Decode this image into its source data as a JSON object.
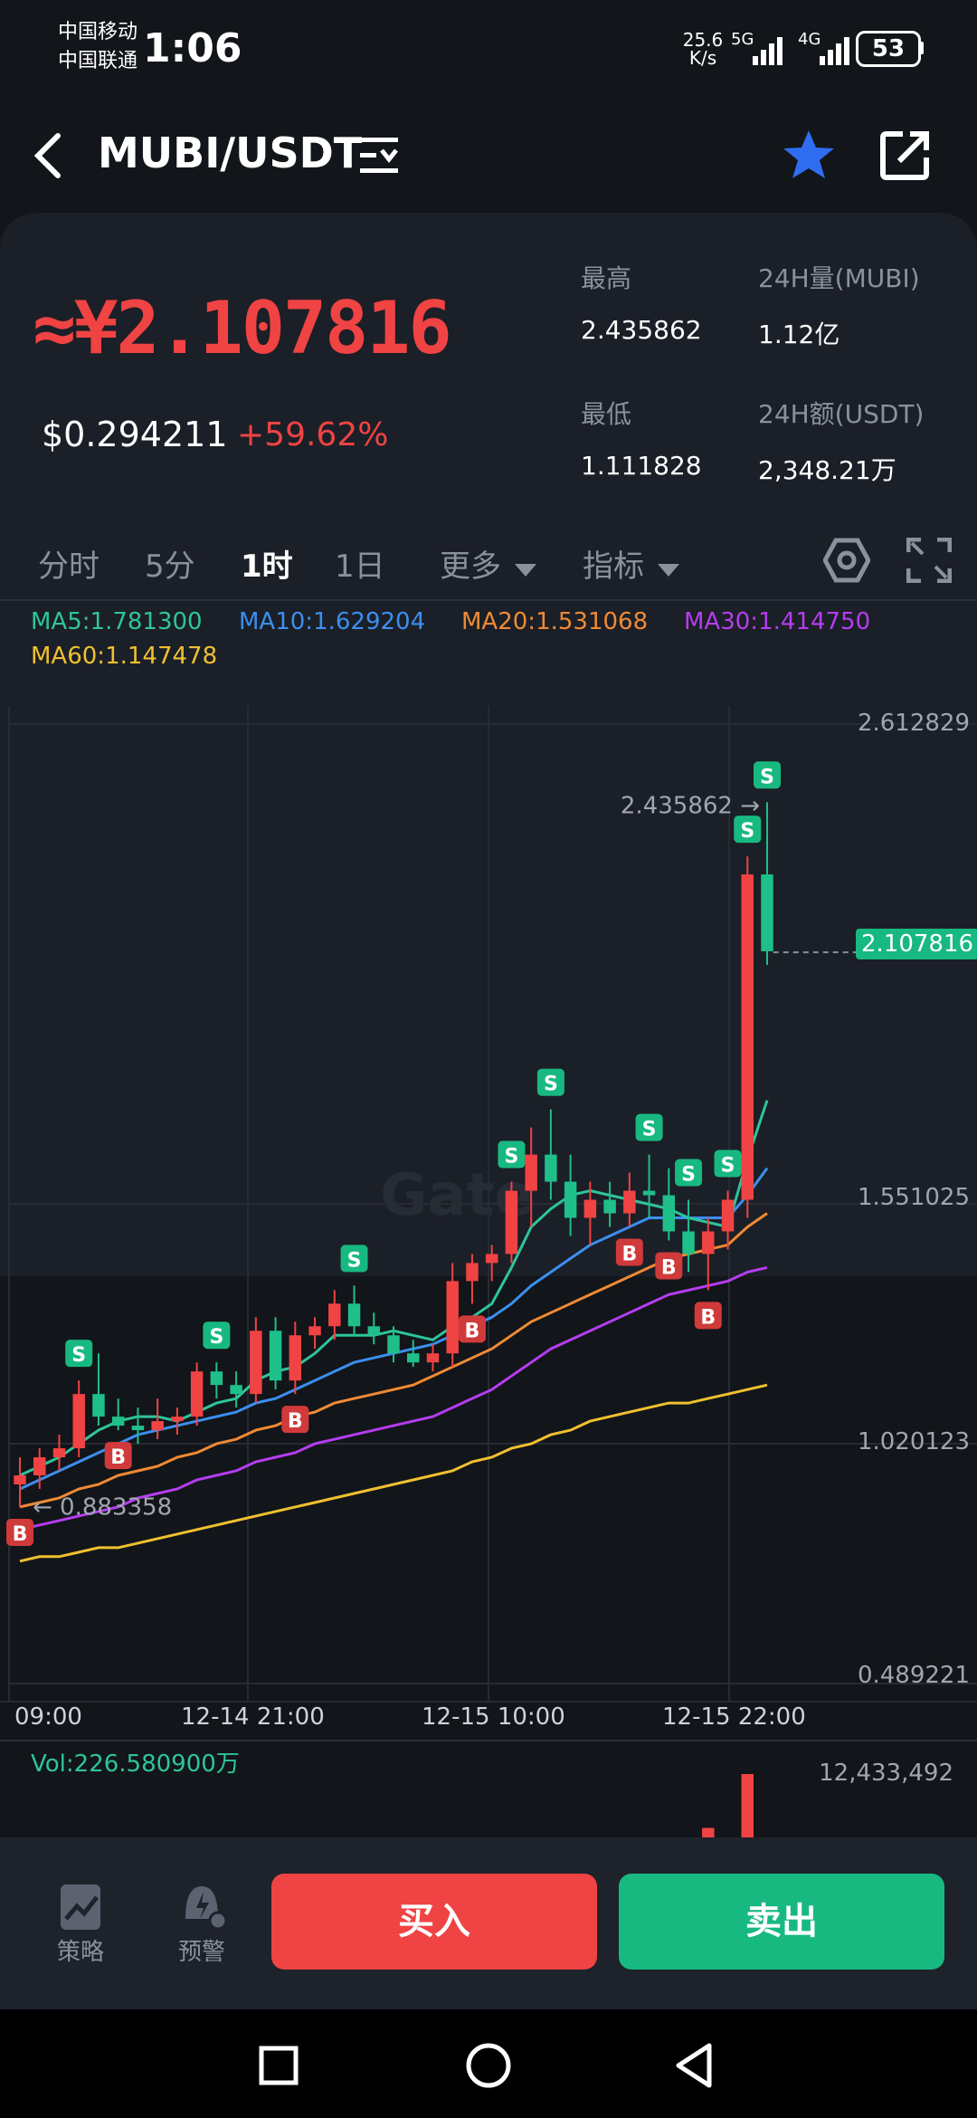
{
  "status_bar": {
    "carrier1": "中国移动",
    "carrier2": "中国联通",
    "time": "1:06",
    "speed": "25.6",
    "speed_unit": "K/s",
    "net1": "5G",
    "net2": "4G",
    "battery": "53"
  },
  "header": {
    "pair": "MUBI/USDT",
    "icons": [
      "back-arrow-icon",
      "list-menu-icon",
      "star-icon",
      "share-icon"
    ]
  },
  "price": {
    "main": "≈¥2.107816",
    "usd": "$0.294211",
    "change": "+59.62%",
    "high_label": "最高",
    "high_value": "2.435862",
    "low_label": "最低",
    "low_value": "1.111828",
    "vol_label": "24H量(MUBI)",
    "vol_value": "1.12亿",
    "amt_label": "24H额(USDT)",
    "amt_value": "2,348.21万"
  },
  "tabs": [
    {
      "label": "分时",
      "active": false
    },
    {
      "label": "5分",
      "active": false
    },
    {
      "label": "1时",
      "active": true
    },
    {
      "label": "1日",
      "active": false
    },
    {
      "label": "更多",
      "active": false
    },
    {
      "label": "指标",
      "active": false
    }
  ],
  "ma_legend": {
    "ma5": "MA5:1.781300",
    "ma10": "MA10:1.629204",
    "ma20": "MA20:1.531068",
    "ma30": "MA30:1.414750",
    "ma60": "MA60:1.147478"
  },
  "colors": {
    "up": "#f04343",
    "down": "#1fbf8a",
    "ma5": "#2ec59a",
    "ma10": "#3b8ff0",
    "ma20": "#f08a35",
    "ma30": "#b53df0",
    "ma60": "#f0c030",
    "buy": "#f04343",
    "sell": "#18b980"
  },
  "chart_data": {
    "type": "candlestick",
    "y_ticks": [
      "2.612829",
      "1.551025",
      "1.020123",
      "0.489221"
    ],
    "ylim": [
      0.489221,
      2.612829
    ],
    "x_ticks": [
      "09:00",
      "12-14 21:00",
      "12-15 10:00",
      "12-15 22:00"
    ],
    "max_label": "2.435862 →",
    "min_label": "← 0.883358",
    "current_price": "2.107816",
    "watermark": "Gate",
    "candles": [
      {
        "o": 0.93,
        "h": 0.99,
        "l": 0.88,
        "c": 0.95
      },
      {
        "o": 0.95,
        "h": 1.01,
        "l": 0.92,
        "c": 0.99
      },
      {
        "o": 0.99,
        "h": 1.04,
        "l": 0.96,
        "c": 1.01
      },
      {
        "o": 1.01,
        "h": 1.16,
        "l": 0.99,
        "c": 1.13
      },
      {
        "o": 1.13,
        "h": 1.22,
        "l": 1.06,
        "c": 1.08
      },
      {
        "o": 1.08,
        "h": 1.12,
        "l": 1.05,
        "c": 1.06
      },
      {
        "o": 1.06,
        "h": 1.1,
        "l": 1.02,
        "c": 1.05
      },
      {
        "o": 1.05,
        "h": 1.12,
        "l": 1.03,
        "c": 1.07
      },
      {
        "o": 1.07,
        "h": 1.1,
        "l": 1.04,
        "c": 1.08
      },
      {
        "o": 1.08,
        "h": 1.2,
        "l": 1.06,
        "c": 1.18
      },
      {
        "o": 1.18,
        "h": 1.2,
        "l": 1.12,
        "c": 1.15
      },
      {
        "o": 1.15,
        "h": 1.18,
        "l": 1.1,
        "c": 1.13
      },
      {
        "o": 1.13,
        "h": 1.3,
        "l": 1.11,
        "c": 1.27
      },
      {
        "o": 1.27,
        "h": 1.3,
        "l": 1.14,
        "c": 1.16
      },
      {
        "o": 1.16,
        "h": 1.29,
        "l": 1.13,
        "c": 1.26
      },
      {
        "o": 1.26,
        "h": 1.3,
        "l": 1.23,
        "c": 1.28
      },
      {
        "o": 1.28,
        "h": 1.36,
        "l": 1.25,
        "c": 1.33
      },
      {
        "o": 1.33,
        "h": 1.37,
        "l": 1.26,
        "c": 1.28
      },
      {
        "o": 1.28,
        "h": 1.31,
        "l": 1.24,
        "c": 1.26
      },
      {
        "o": 1.26,
        "h": 1.28,
        "l": 1.2,
        "c": 1.22
      },
      {
        "o": 1.22,
        "h": 1.25,
        "l": 1.19,
        "c": 1.2
      },
      {
        "o": 1.2,
        "h": 1.24,
        "l": 1.18,
        "c": 1.22
      },
      {
        "o": 1.22,
        "h": 1.42,
        "l": 1.19,
        "c": 1.38
      },
      {
        "o": 1.38,
        "h": 1.44,
        "l": 1.33,
        "c": 1.42
      },
      {
        "o": 1.42,
        "h": 1.46,
        "l": 1.38,
        "c": 1.44
      },
      {
        "o": 1.44,
        "h": 1.6,
        "l": 1.42,
        "c": 1.58
      },
      {
        "o": 1.58,
        "h": 1.72,
        "l": 1.5,
        "c": 1.66
      },
      {
        "o": 1.66,
        "h": 1.76,
        "l": 1.56,
        "c": 1.6
      },
      {
        "o": 1.6,
        "h": 1.66,
        "l": 1.48,
        "c": 1.52
      },
      {
        "o": 1.52,
        "h": 1.6,
        "l": 1.46,
        "c": 1.56
      },
      {
        "o": 1.56,
        "h": 1.6,
        "l": 1.5,
        "c": 1.53
      },
      {
        "o": 1.53,
        "h": 1.62,
        "l": 1.5,
        "c": 1.58
      },
      {
        "o": 1.58,
        "h": 1.66,
        "l": 1.52,
        "c": 1.57
      },
      {
        "o": 1.57,
        "h": 1.63,
        "l": 1.47,
        "c": 1.49
      },
      {
        "o": 1.49,
        "h": 1.56,
        "l": 1.4,
        "c": 1.44
      },
      {
        "o": 1.44,
        "h": 1.52,
        "l": 1.36,
        "c": 1.49
      },
      {
        "o": 1.49,
        "h": 1.58,
        "l": 1.45,
        "c": 1.56
      },
      {
        "o": 1.56,
        "h": 2.32,
        "l": 1.52,
        "c": 2.28
      },
      {
        "o": 2.28,
        "h": 2.44,
        "l": 2.08,
        "c": 2.11
      }
    ],
    "ma5": [
      0.95,
      0.97,
      0.99,
      1.02,
      1.05,
      1.07,
      1.08,
      1.08,
      1.07,
      1.09,
      1.11,
      1.12,
      1.16,
      1.18,
      1.19,
      1.22,
      1.26,
      1.26,
      1.26,
      1.27,
      1.26,
      1.25,
      1.28,
      1.3,
      1.33,
      1.41,
      1.5,
      1.54,
      1.57,
      1.58,
      1.57,
      1.56,
      1.55,
      1.54,
      1.52,
      1.51,
      1.5,
      1.65,
      1.78
    ],
    "ma10": [
      0.92,
      0.94,
      0.96,
      0.98,
      1.0,
      1.02,
      1.04,
      1.05,
      1.06,
      1.07,
      1.08,
      1.09,
      1.11,
      1.12,
      1.14,
      1.16,
      1.18,
      1.2,
      1.21,
      1.22,
      1.23,
      1.24,
      1.26,
      1.28,
      1.3,
      1.33,
      1.37,
      1.4,
      1.43,
      1.46,
      1.48,
      1.5,
      1.52,
      1.52,
      1.52,
      1.52,
      1.52,
      1.57,
      1.63
    ],
    "ma20": [
      0.88,
      0.89,
      0.9,
      0.92,
      0.93,
      0.95,
      0.96,
      0.97,
      0.99,
      1.0,
      1.02,
      1.03,
      1.05,
      1.06,
      1.08,
      1.09,
      1.11,
      1.12,
      1.13,
      1.14,
      1.15,
      1.17,
      1.19,
      1.21,
      1.23,
      1.26,
      1.29,
      1.31,
      1.33,
      1.35,
      1.37,
      1.39,
      1.41,
      1.43,
      1.44,
      1.45,
      1.46,
      1.5,
      1.53
    ],
    "ma30": [
      0.83,
      0.84,
      0.85,
      0.86,
      0.87,
      0.88,
      0.9,
      0.91,
      0.92,
      0.94,
      0.95,
      0.96,
      0.98,
      0.99,
      1.0,
      1.02,
      1.03,
      1.04,
      1.05,
      1.06,
      1.07,
      1.08,
      1.1,
      1.12,
      1.14,
      1.17,
      1.2,
      1.23,
      1.25,
      1.27,
      1.29,
      1.31,
      1.33,
      1.35,
      1.36,
      1.37,
      1.38,
      1.4,
      1.41
    ],
    "ma60": [
      0.76,
      0.77,
      0.77,
      0.78,
      0.79,
      0.79,
      0.8,
      0.81,
      0.82,
      0.83,
      0.84,
      0.85,
      0.86,
      0.87,
      0.88,
      0.89,
      0.9,
      0.91,
      0.92,
      0.93,
      0.94,
      0.95,
      0.96,
      0.98,
      0.99,
      1.01,
      1.02,
      1.04,
      1.05,
      1.07,
      1.08,
      1.09,
      1.1,
      1.11,
      1.11,
      1.12,
      1.13,
      1.14,
      1.15
    ],
    "signals": [
      {
        "i": 0,
        "t": "B"
      },
      {
        "i": 3,
        "t": "S"
      },
      {
        "i": 5,
        "t": "B"
      },
      {
        "i": 10,
        "t": "S"
      },
      {
        "i": 14,
        "t": "B"
      },
      {
        "i": 17,
        "t": "S"
      },
      {
        "i": 23,
        "t": "B"
      },
      {
        "i": 25,
        "t": "S"
      },
      {
        "i": 27,
        "t": "S"
      },
      {
        "i": 31,
        "t": "B"
      },
      {
        "i": 32,
        "t": "S"
      },
      {
        "i": 33,
        "t": "B"
      },
      {
        "i": 34,
        "t": "S"
      },
      {
        "i": 35,
        "t": "B"
      },
      {
        "i": 36,
        "t": "S"
      },
      {
        "i": 37,
        "t": "S"
      },
      {
        "i": 38,
        "t": "S"
      }
    ],
    "volume": {
      "label": "Vol:226.580900万",
      "max_label": "12,433,492",
      "bars": [
        {
          "i": 35,
          "v": 0.15,
          "up": true
        },
        {
          "i": 37,
          "v": 1.0,
          "up": true
        }
      ]
    }
  },
  "actions": {
    "strategy": "策略",
    "alert": "预警",
    "buy": "买入",
    "sell": "卖出"
  }
}
